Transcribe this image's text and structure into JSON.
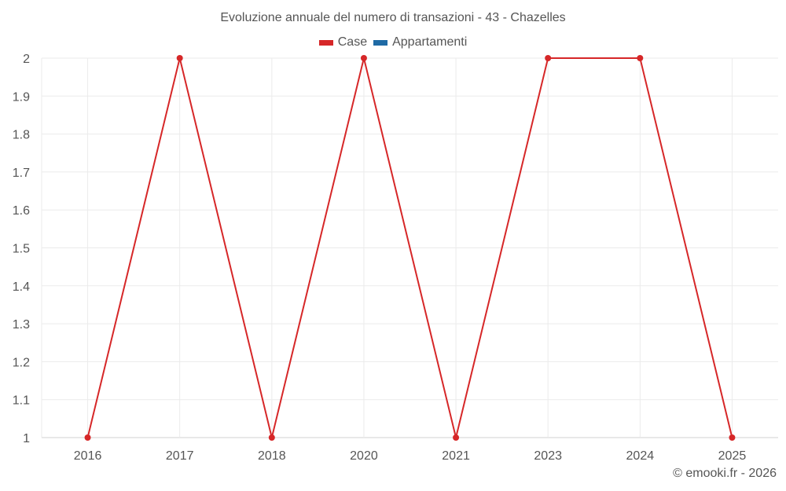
{
  "chart_data": {
    "type": "line",
    "title": "Evoluzione annuale del numero di transazioni - 43 - Chazelles",
    "categories": [
      "2016",
      "2017",
      "2018",
      "2020",
      "2021",
      "2023",
      "2024",
      "2025"
    ],
    "series": [
      {
        "name": "Case",
        "color": "#d62728",
        "values": [
          1,
          2,
          1,
          2,
          1,
          2,
          2,
          1
        ]
      },
      {
        "name": "Appartamenti",
        "color": "#1f5f99",
        "values": []
      }
    ],
    "xlabel": "",
    "ylabel": "",
    "ylim": [
      1,
      2
    ],
    "yticks": [
      "2",
      "1.9",
      "1.8",
      "1.7",
      "1.6",
      "1.5",
      "1.4",
      "1.3",
      "1.2",
      "1.1",
      "1"
    ],
    "grid": true,
    "legend_position": "top"
  },
  "legend": {
    "items": [
      {
        "label": "Case",
        "color": "#d62728"
      },
      {
        "label": "Appartamenti",
        "color": "#1f6aa5"
      }
    ]
  },
  "footer": {
    "credit": "© emooki.fr - 2026"
  }
}
